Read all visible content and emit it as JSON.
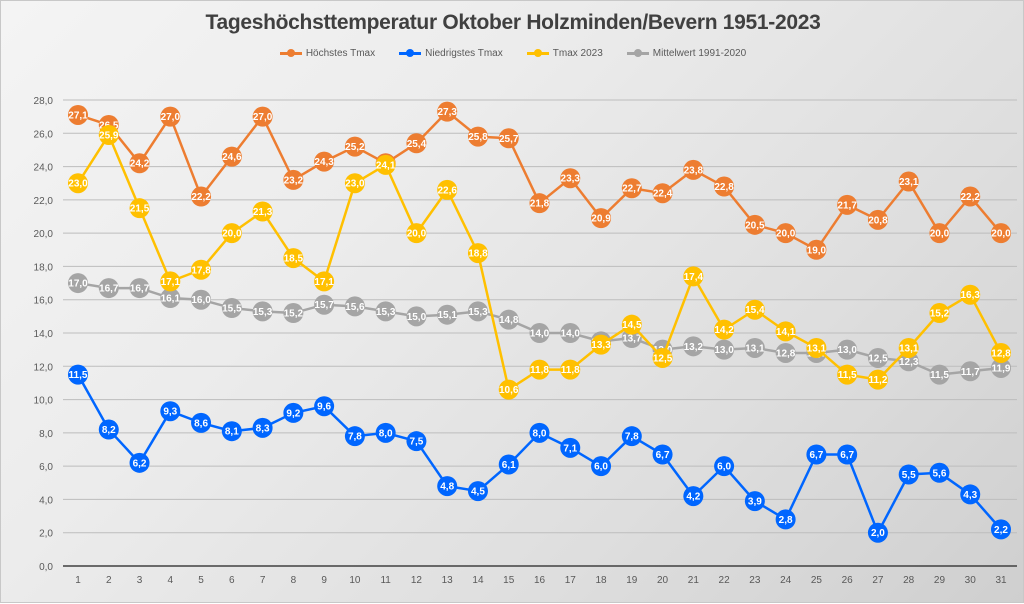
{
  "chart_data": {
    "type": "line",
    "title": "Tageshöchsttemperatur Oktober Holzminden/Bevern 1951-2023",
    "xlabel": "",
    "ylabel": "",
    "x": [
      1,
      2,
      3,
      4,
      5,
      6,
      7,
      8,
      9,
      10,
      11,
      12,
      13,
      14,
      15,
      16,
      17,
      18,
      19,
      20,
      21,
      22,
      23,
      24,
      25,
      26,
      27,
      28,
      29,
      30,
      31
    ],
    "ylim": [
      0,
      28
    ],
    "yticks": [
      "0,0",
      "2,0",
      "4,0",
      "6,0",
      "8,0",
      "10,0",
      "12,0",
      "14,0",
      "16,0",
      "18,0",
      "20,0",
      "22,0",
      "24,0",
      "26,0",
      "28,0"
    ],
    "grid": true,
    "legend_position": "top",
    "series": [
      {
        "name": "Höchstes Tmax",
        "color": "#ED7D31",
        "values": [
          27.1,
          26.5,
          24.2,
          27.0,
          22.2,
          24.6,
          27.0,
          23.2,
          24.3,
          25.2,
          24.2,
          25.4,
          27.3,
          25.8,
          25.7,
          21.8,
          23.3,
          20.9,
          22.7,
          22.4,
          23.8,
          22.8,
          20.5,
          20.0,
          19.0,
          21.7,
          20.8,
          23.1,
          20.0,
          22.2,
          20.0
        ]
      },
      {
        "name": "Niedrigstes Tmax",
        "color": "#0066FF",
        "values": [
          11.5,
          8.2,
          6.2,
          9.3,
          8.6,
          8.1,
          8.3,
          9.2,
          9.6,
          7.8,
          8.0,
          7.5,
          4.8,
          4.5,
          6.1,
          8.0,
          7.1,
          6.0,
          7.8,
          6.7,
          4.2,
          6.0,
          3.9,
          2.8,
          6.7,
          6.7,
          2.0,
          5.5,
          5.6,
          4.3,
          2.2
        ]
      },
      {
        "name": "Mittelwert 1991-2020",
        "color": "#A5A5A5",
        "values": [
          17.0,
          16.7,
          16.7,
          16.1,
          16.0,
          15.5,
          15.3,
          15.2,
          15.7,
          15.6,
          15.3,
          15.0,
          15.1,
          15.3,
          14.8,
          14.0,
          14.0,
          13.5,
          13.7,
          13.0,
          13.2,
          13.0,
          13.1,
          12.8,
          12.8,
          13.0,
          12.5,
          12.3,
          11.5,
          11.7,
          11.9
        ]
      },
      {
        "name": "Tmax 2023",
        "color": "#FFC000",
        "values": [
          23.0,
          25.9,
          21.5,
          17.1,
          17.8,
          20.0,
          21.3,
          18.5,
          17.1,
          23.0,
          24.1,
          20.0,
          22.6,
          18.8,
          10.6,
          11.8,
          11.8,
          13.3,
          14.5,
          12.5,
          17.4,
          14.2,
          15.4,
          14.1,
          13.1,
          11.5,
          11.2,
          13.1,
          15.2,
          16.3,
          12.8
        ]
      }
    ],
    "legend_order": [
      "Höchstes Tmax",
      "Niedrigstes Tmax",
      "Tmax 2023",
      "Mittelwert 1991-2020"
    ]
  }
}
